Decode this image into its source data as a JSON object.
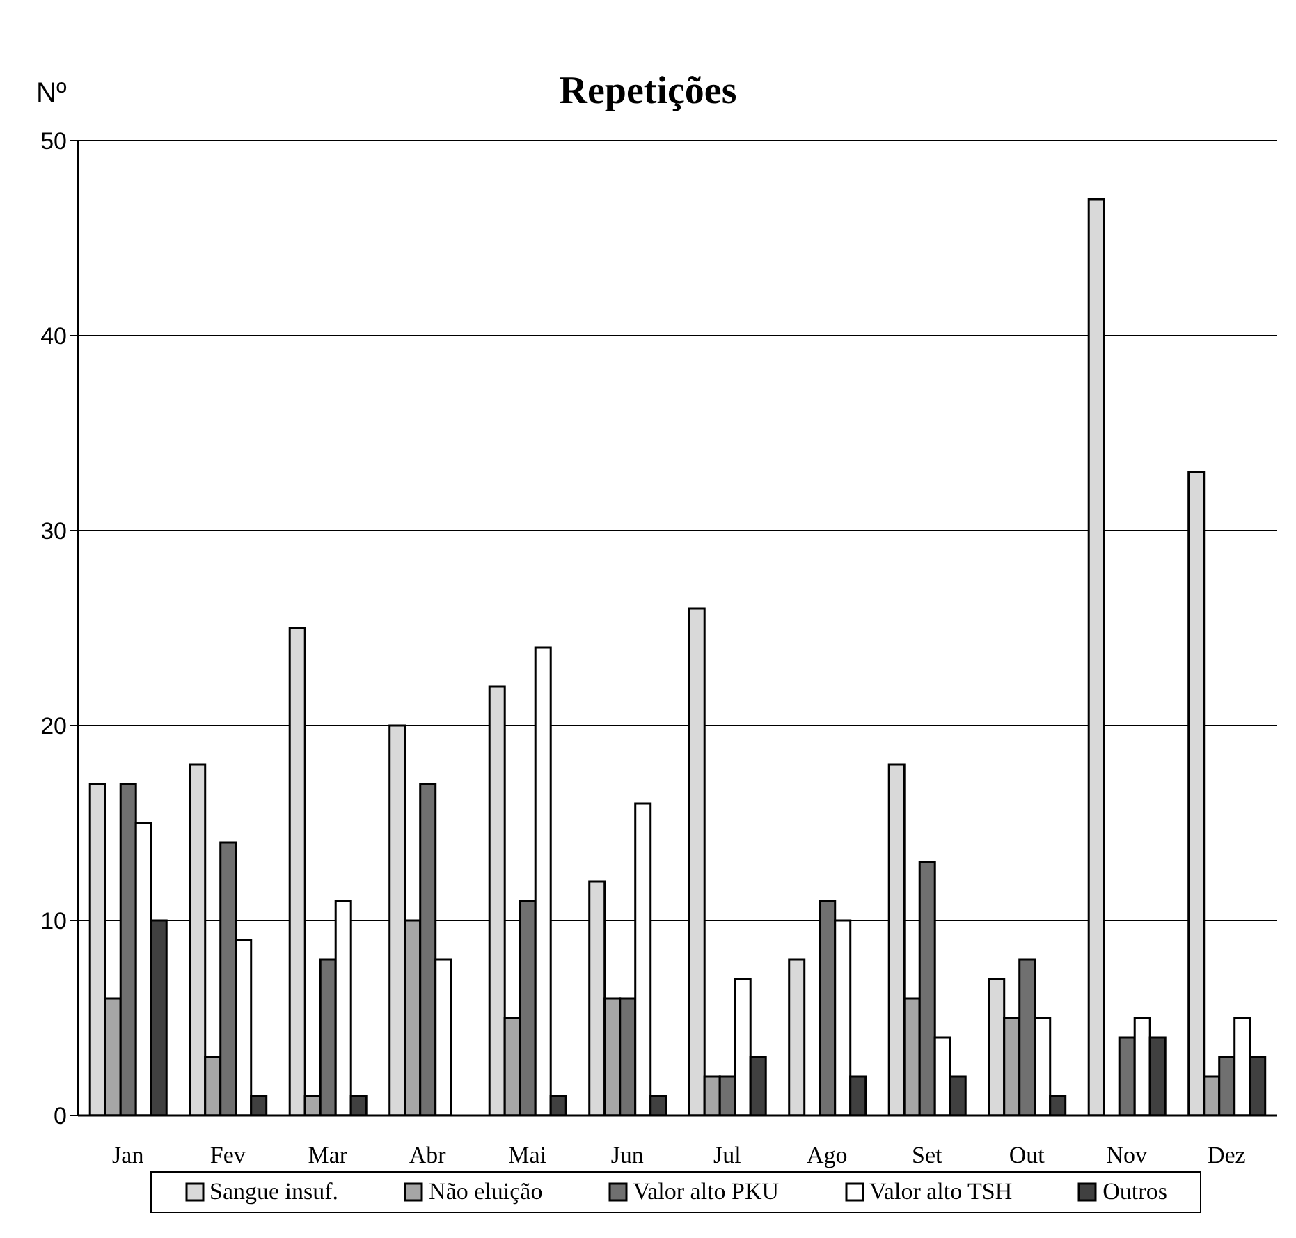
{
  "chart_data": {
    "type": "bar",
    "title": "Repetições",
    "ylabel": "Nº",
    "categories": [
      "Jan",
      "Fev",
      "Mar",
      "Abr",
      "Mai",
      "Jun",
      "Jul",
      "Ago",
      "Set",
      "Out",
      "Nov",
      "Dez"
    ],
    "series": [
      {
        "name": "Sangue insuf.",
        "color": "#d9d9d9",
        "values": [
          17,
          18,
          25,
          20,
          22,
          12,
          26,
          8,
          18,
          7,
          47,
          33
        ]
      },
      {
        "name": "Não eluição",
        "color": "#a6a6a6",
        "values": [
          6,
          3,
          1,
          10,
          5,
          6,
          2,
          0,
          6,
          5,
          0,
          2
        ]
      },
      {
        "name": "Valor alto PKU",
        "color": "#707070",
        "values": [
          17,
          14,
          8,
          17,
          11,
          6,
          2,
          11,
          13,
          8,
          4,
          3
        ]
      },
      {
        "name": "Valor alto TSH",
        "color": "#ffffff",
        "values": [
          15,
          9,
          11,
          8,
          24,
          16,
          7,
          10,
          4,
          5,
          5,
          5
        ]
      },
      {
        "name": "Outros",
        "color": "#404040",
        "values": [
          10,
          1,
          1,
          0,
          1,
          1,
          3,
          2,
          2,
          1,
          4,
          3
        ]
      }
    ],
    "ylim": [
      0,
      50
    ],
    "yticks": [
      0,
      10,
      20,
      30,
      40,
      50
    ],
    "grid": "y",
    "legend": "bottom"
  }
}
